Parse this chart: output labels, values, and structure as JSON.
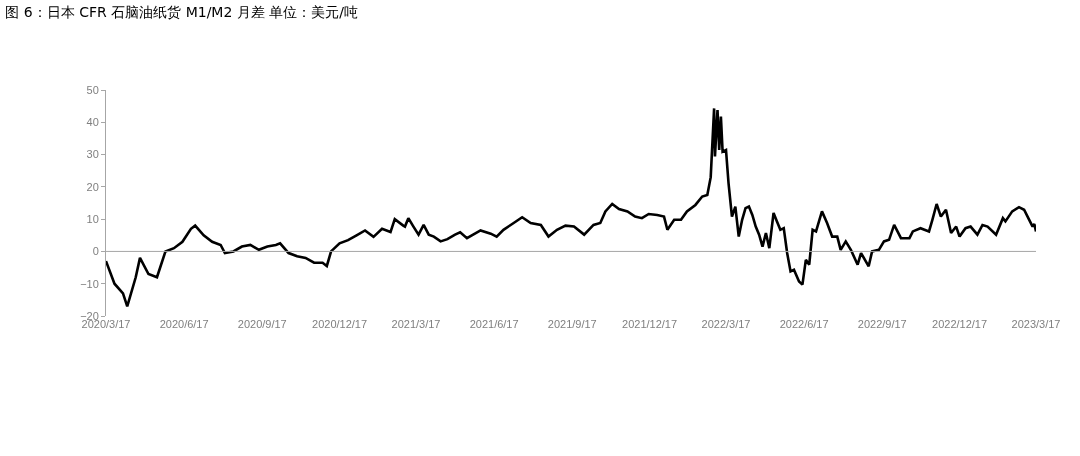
{
  "chart_data": {
    "type": "line",
    "title": "图 6：日本 CFR 石脑油纸货 M1/M2 月差 单位：美元/吨",
    "x": [
      "2020-03-17",
      "2020-03-27",
      "2020-04-06",
      "2020-04-11",
      "2020-04-21",
      "2020-04-26",
      "2020-05-06",
      "2020-05-16",
      "2020-05-26",
      "2020-06-05",
      "2020-06-15",
      "2020-06-25",
      "2020-06-30",
      "2020-07-10",
      "2020-07-20",
      "2020-07-30",
      "2020-08-04",
      "2020-08-14",
      "2020-08-24",
      "2020-09-03",
      "2020-09-13",
      "2020-09-23",
      "2020-10-03",
      "2020-10-08",
      "2020-10-18",
      "2020-10-28",
      "2020-11-07",
      "2020-11-17",
      "2020-11-27",
      "2020-12-02",
      "2020-12-07",
      "2020-12-17",
      "2020-12-27",
      "2021-01-06",
      "2021-01-16",
      "2021-01-26",
      "2021-02-05",
      "2021-02-15",
      "2021-02-20",
      "2021-03-02",
      "2021-03-04",
      "2021-03-08",
      "2021-03-14",
      "2021-03-20",
      "2021-03-26",
      "2021-04-01",
      "2021-04-07",
      "2021-04-15",
      "2021-04-23",
      "2021-05-02",
      "2021-05-08",
      "2021-05-16",
      "2021-06-01",
      "2021-06-13",
      "2021-06-20",
      "2021-06-28",
      "2021-07-10",
      "2021-07-20",
      "2021-07-30",
      "2021-08-11",
      "2021-08-20",
      "2021-08-30",
      "2021-09-09",
      "2021-09-19",
      "2021-10-01",
      "2021-10-12",
      "2021-10-20",
      "2021-10-26",
      "2021-11-03",
      "2021-11-11",
      "2021-11-21",
      "2021-11-30",
      "2021-12-08",
      "2021-12-16",
      "2021-12-26",
      "2022-01-03",
      "2022-01-07",
      "2022-01-15",
      "2022-01-23",
      "2022-01-30",
      "2022-02-09",
      "2022-02-17",
      "2022-02-23",
      "2022-02-27",
      "2022-03-03",
      "2022-03-04",
      "2022-03-07",
      "2022-03-09",
      "2022-03-11",
      "2022-03-13",
      "2022-03-17",
      "2022-03-20",
      "2022-03-24",
      "2022-03-28",
      "2022-04-01",
      "2022-04-05",
      "2022-04-09",
      "2022-04-13",
      "2022-04-17",
      "2022-04-21",
      "2022-04-25",
      "2022-04-29",
      "2022-05-03",
      "2022-05-07",
      "2022-05-12",
      "2022-05-16",
      "2022-05-20",
      "2022-05-24",
      "2022-05-28",
      "2022-06-01",
      "2022-06-05",
      "2022-06-11",
      "2022-06-15",
      "2022-06-19",
      "2022-06-23",
      "2022-06-27",
      "2022-07-01",
      "2022-07-05",
      "2022-07-08",
      "2022-07-14",
      "2022-07-20",
      "2022-07-26",
      "2022-07-30",
      "2022-08-05",
      "2022-08-11",
      "2022-08-19",
      "2022-08-23",
      "2022-09-01",
      "2022-09-05",
      "2022-09-13",
      "2022-09-19",
      "2022-09-25",
      "2022-10-01",
      "2022-10-09",
      "2022-10-19",
      "2022-10-23",
      "2022-11-01",
      "2022-11-11",
      "2022-11-15",
      "2022-11-20",
      "2022-11-25",
      "2022-12-01",
      "2022-12-07",
      "2022-12-13",
      "2022-12-17",
      "2022-12-24",
      "2022-12-30",
      "2023-01-07",
      "2023-01-13",
      "2023-01-19",
      "2023-01-29",
      "2023-02-06",
      "2023-02-09",
      "2023-02-17",
      "2023-02-25",
      "2023-03-03",
      "2023-03-09",
      "2023-03-13",
      "2023-03-15",
      "2023-03-17"
    ],
    "series": [
      {
        "color": "#000000",
        "values": [
          -3,
          -10,
          -13,
          -17,
          -8,
          -2,
          -7,
          -8,
          0,
          1,
          3,
          7,
          8,
          5,
          3,
          2,
          -0.5,
          0,
          1.5,
          2,
          0.5,
          1.5,
          2,
          2.5,
          -0.5,
          -1.5,
          -2,
          -3.5,
          -3.5,
          -4.5,
          0,
          2.5,
          3.5,
          5,
          6.5,
          4.5,
          7,
          6,
          10,
          8,
          7.7,
          10.3,
          7.7,
          5.2,
          8.2,
          5.2,
          4.6,
          3.1,
          3.8,
          5.2,
          5.9,
          4.1,
          6.5,
          5.5,
          4.6,
          6.7,
          8.8,
          10.6,
          8.8,
          8.2,
          4.6,
          6.7,
          8,
          7.7,
          5.2,
          8.2,
          8.8,
          12.4,
          14.7,
          13.1,
          12.4,
          10.8,
          10.3,
          11.6,
          11.3,
          10.8,
          6.7,
          9.8,
          9.8,
          12.4,
          14.4,
          17,
          17.5,
          23,
          44.3,
          29.4,
          43.8,
          31.4,
          41.8,
          30.9,
          31.4,
          21.1,
          10.8,
          13.9,
          4.6,
          9.8,
          13.4,
          13.9,
          11.3,
          7.7,
          5.2,
          1.5,
          5.7,
          1,
          11.9,
          9.3,
          6.7,
          7.2,
          -0.5,
          -6.2,
          -5.7,
          -9.3,
          -10.3,
          -2.6,
          -4.1,
          6.7,
          6.2,
          9.8,
          12.4,
          8.8,
          4.6,
          4.6,
          0.5,
          3.1,
          0.5,
          -4.1,
          -0.5,
          -4.6,
          0,
          0.5,
          3.1,
          3.6,
          8.2,
          4.1,
          4.1,
          6.2,
          7.2,
          6.2,
          9.8,
          14.7,
          10.8,
          12.9,
          5.7,
          7.7,
          4.6,
          7.2,
          7.7,
          5.2,
          8.2,
          7.7,
          5.2,
          10.3,
          9.3,
          12.4,
          13.7,
          12.9,
          9.8,
          7.7,
          8.5,
          6.2
        ]
      }
    ],
    "xlim": [
      "2020-03-17",
      "2023-03-17"
    ],
    "xticks": [
      {
        "value": "2020-03-17",
        "label": "2020/3/17"
      },
      {
        "value": "2020-06-17",
        "label": "2020/6/17"
      },
      {
        "value": "2020-09-17",
        "label": "2020/9/17"
      },
      {
        "value": "2020-12-17",
        "label": "2020/12/17"
      },
      {
        "value": "2021-03-17",
        "label": "2021/3/17"
      },
      {
        "value": "2021-06-17",
        "label": "2021/6/17"
      },
      {
        "value": "2021-09-17",
        "label": "2021/9/17"
      },
      {
        "value": "2021-12-17",
        "label": "2021/12/17"
      },
      {
        "value": "2022-03-17",
        "label": "2022/3/17"
      },
      {
        "value": "2022-06-17",
        "label": "2022/6/17"
      },
      {
        "value": "2022-09-17",
        "label": "2022/9/17"
      },
      {
        "value": "2022-12-17",
        "label": "2022/12/17"
      },
      {
        "value": "2023-03-17",
        "label": "2023/3/17"
      }
    ],
    "ylim": [
      -20,
      50
    ],
    "yticks": [
      -20,
      -10,
      0,
      10,
      20,
      30,
      40,
      50
    ],
    "ref_lines": [
      {
        "axis": "y",
        "value": 0,
        "color": "#a6a6a6",
        "line_style": "solid"
      }
    ],
    "grid": false,
    "marker": "none",
    "line_style": "solid"
  }
}
